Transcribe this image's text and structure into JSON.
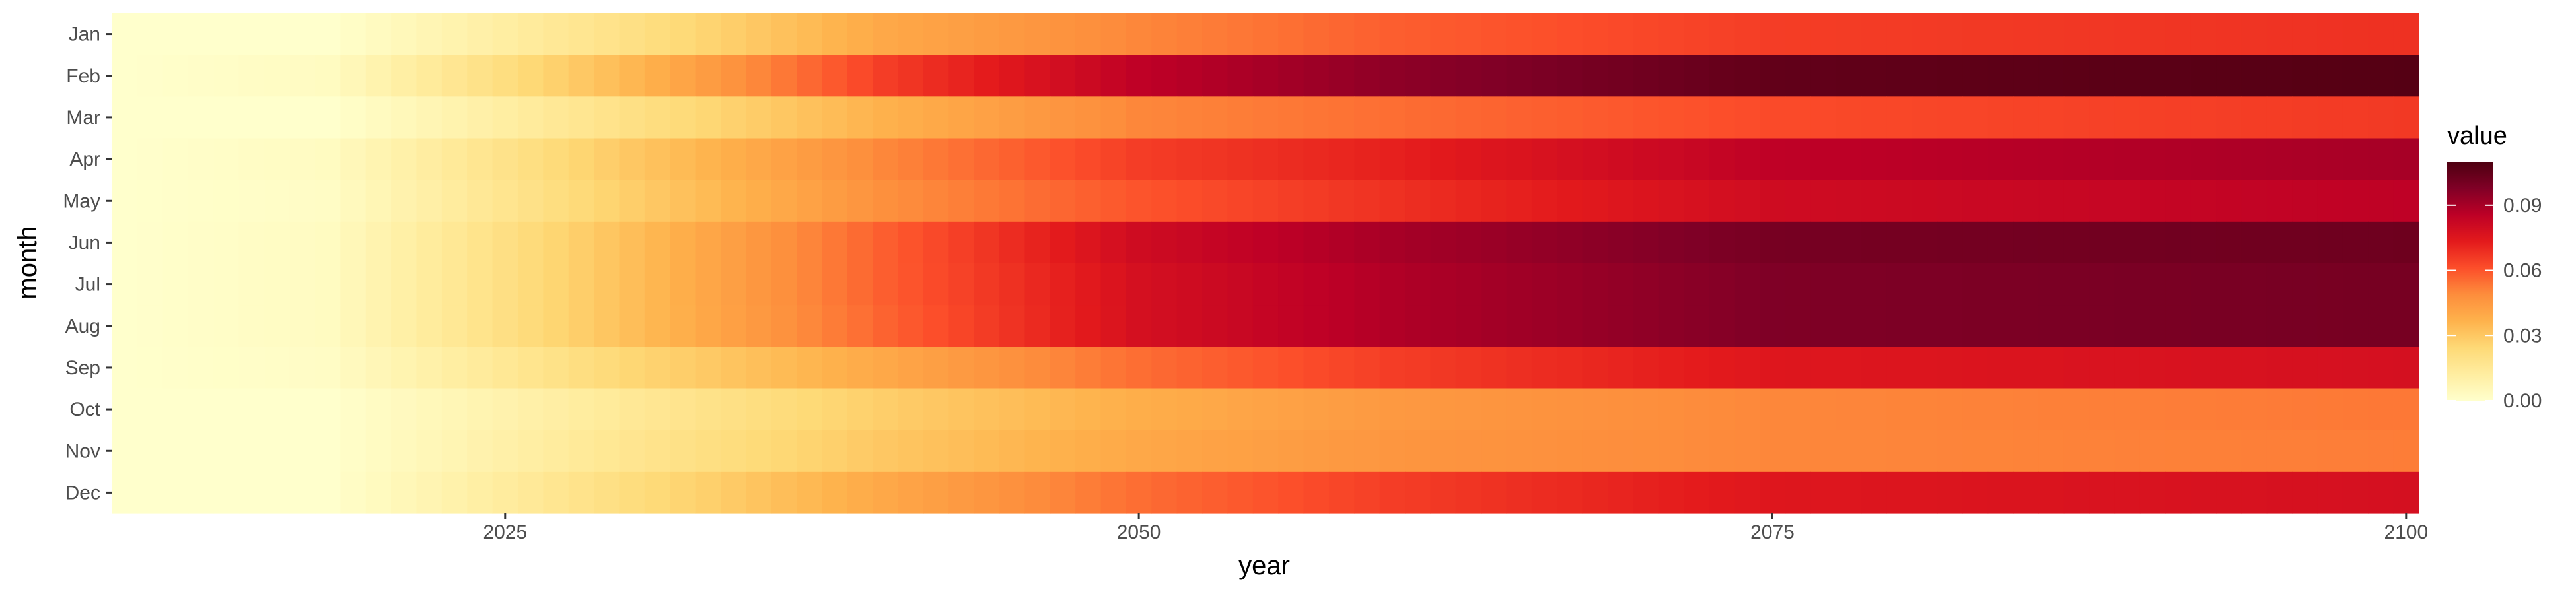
{
  "chart_data": {
    "type": "heatmap",
    "title": "",
    "xlabel": "year",
    "ylabel": "month",
    "x_range": [
      2010,
      2100
    ],
    "x_ticks": [
      "2025",
      "2050",
      "2075",
      "2100"
    ],
    "categories_y": [
      "Jan",
      "Feb",
      "Mar",
      "Apr",
      "May",
      "Jun",
      "Jul",
      "Aug",
      "Sep",
      "Oct",
      "Nov",
      "Dec"
    ],
    "color_scale": {
      "name": "YlOrRd",
      "min": 0.0,
      "max": 0.11,
      "stops": [
        "#ffffcc",
        "#ffeda0",
        "#fed976",
        "#feb24c",
        "#fd8d3c",
        "#fc4e2a",
        "#e31a1c",
        "#bd0026",
        "#800026",
        "#4d0010"
      ]
    },
    "legend": {
      "title": "value",
      "ticks": [
        "0.00",
        "0.03",
        "0.06",
        "0.09"
      ],
      "tick_values": [
        0.0,
        0.03,
        0.06,
        0.09
      ],
      "position": "right"
    },
    "row_profiles": [
      {
        "month": "Jan",
        "years": [
          2010,
          2018,
          2030,
          2040,
          2050,
          2060,
          2075,
          2100
        ],
        "values": [
          0.0,
          0.0,
          0.02,
          0.04,
          0.05,
          0.058,
          0.065,
          0.068
        ]
      },
      {
        "month": "Feb",
        "years": [
          2010,
          2018,
          2030,
          2040,
          2050,
          2060,
          2075,
          2100
        ],
        "values": [
          0.0,
          0.003,
          0.035,
          0.065,
          0.085,
          0.095,
          0.105,
          0.108
        ]
      },
      {
        "month": "Mar",
        "years": [
          2010,
          2018,
          2030,
          2040,
          2050,
          2060,
          2075,
          2100
        ],
        "values": [
          0.0,
          0.0,
          0.02,
          0.037,
          0.05,
          0.055,
          0.062,
          0.066
        ]
      },
      {
        "month": "Apr",
        "years": [
          2010,
          2018,
          2030,
          2040,
          2050,
          2060,
          2075,
          2100
        ],
        "values": [
          0.0,
          0.003,
          0.03,
          0.05,
          0.065,
          0.072,
          0.085,
          0.09
        ]
      },
      {
        "month": "May",
        "years": [
          2010,
          2018,
          2030,
          2040,
          2050,
          2060,
          2075,
          2100
        ],
        "values": [
          0.0,
          0.002,
          0.028,
          0.048,
          0.06,
          0.068,
          0.08,
          0.085
        ]
      },
      {
        "month": "Jun",
        "years": [
          2010,
          2018,
          2030,
          2040,
          2050,
          2060,
          2075,
          2100
        ],
        "values": [
          0.0,
          0.003,
          0.033,
          0.058,
          0.08,
          0.09,
          0.1,
          0.102
        ]
      },
      {
        "month": "Jul",
        "years": [
          2010,
          2018,
          2030,
          2040,
          2050,
          2060,
          2075,
          2100
        ],
        "values": [
          0.0,
          0.003,
          0.033,
          0.058,
          0.078,
          0.088,
          0.098,
          0.1
        ]
      },
      {
        "month": "Aug",
        "years": [
          2010,
          2018,
          2030,
          2040,
          2050,
          2060,
          2075,
          2100
        ],
        "values": [
          0.0,
          0.003,
          0.033,
          0.057,
          0.078,
          0.088,
          0.098,
          0.1
        ]
      },
      {
        "month": "Sep",
        "years": [
          2010,
          2018,
          2030,
          2040,
          2050,
          2060,
          2075,
          2100
        ],
        "values": [
          0.0,
          0.002,
          0.025,
          0.04,
          0.055,
          0.065,
          0.075,
          0.078
        ]
      },
      {
        "month": "Oct",
        "years": [
          2010,
          2018,
          2030,
          2040,
          2050,
          2060,
          2075,
          2100
        ],
        "values": [
          0.0,
          0.0,
          0.015,
          0.028,
          0.038,
          0.045,
          0.05,
          0.053
        ]
      },
      {
        "month": "Nov",
        "years": [
          2010,
          2018,
          2030,
          2040,
          2050,
          2060,
          2075,
          2100
        ],
        "values": [
          0.0,
          0.0,
          0.017,
          0.03,
          0.04,
          0.046,
          0.05,
          0.052
        ]
      },
      {
        "month": "Dec",
        "years": [
          2010,
          2018,
          2030,
          2040,
          2050,
          2060,
          2075,
          2100
        ],
        "values": [
          0.0,
          0.0,
          0.022,
          0.04,
          0.055,
          0.065,
          0.075,
          0.078
        ]
      }
    ]
  }
}
